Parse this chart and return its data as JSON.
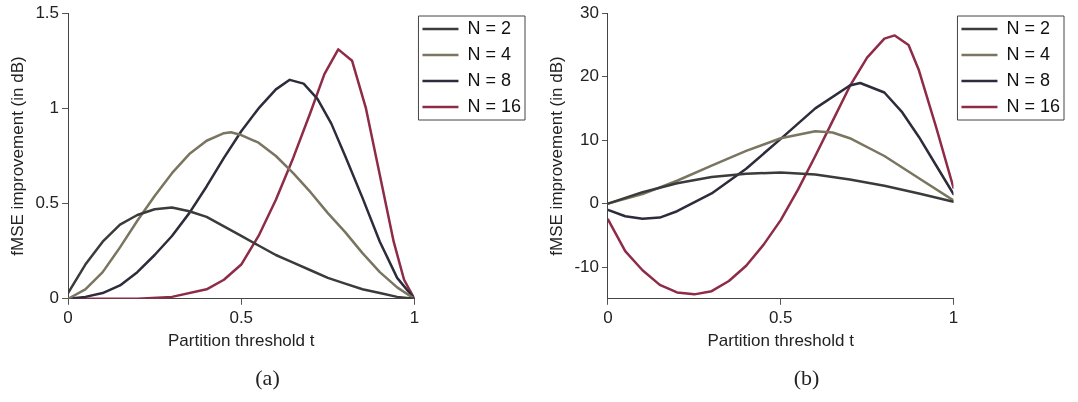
{
  "chart_data": [
    {
      "type": "line",
      "title": "(a)",
      "xlabel": "Partition threshold t",
      "ylabel": "fMSE improvement (in dB)",
      "xlim": [
        0,
        1
      ],
      "ylim": [
        0,
        1.5
      ],
      "xticks": [
        0,
        0.5,
        1
      ],
      "yticks": [
        0,
        0.5,
        1,
        1.5
      ],
      "grid": false,
      "legend": "top right",
      "marker": "none",
      "line_style": "solid",
      "series": [
        {
          "name": "N = 2",
          "color": "#3b3b3b",
          "x": [
            0,
            0.05,
            0.1,
            0.15,
            0.2,
            0.25,
            0.3,
            0.35,
            0.4,
            0.45,
            0.5,
            0.55,
            0.6,
            0.65,
            0.7,
            0.75,
            0.8,
            0.85,
            0.9,
            0.95,
            1
          ],
          "values": [
            0.03,
            0.18,
            0.3,
            0.39,
            0.44,
            0.47,
            0.48,
            0.46,
            0.43,
            0.38,
            0.33,
            0.28,
            0.23,
            0.19,
            0.15,
            0.11,
            0.08,
            0.05,
            0.03,
            0.01,
            0
          ]
        },
        {
          "name": "N = 4",
          "color": "#7a7560",
          "x": [
            0,
            0.05,
            0.1,
            0.15,
            0.2,
            0.25,
            0.3,
            0.35,
            0.4,
            0.45,
            0.47,
            0.5,
            0.55,
            0.6,
            0.65,
            0.7,
            0.75,
            0.8,
            0.85,
            0.9,
            0.95,
            1
          ],
          "values": [
            0,
            0.05,
            0.14,
            0.27,
            0.41,
            0.54,
            0.66,
            0.76,
            0.83,
            0.87,
            0.875,
            0.86,
            0.82,
            0.75,
            0.66,
            0.56,
            0.45,
            0.35,
            0.24,
            0.14,
            0.06,
            0
          ]
        },
        {
          "name": "N = 8",
          "color": "#2d2c3c",
          "x": [
            0,
            0.05,
            0.1,
            0.15,
            0.2,
            0.25,
            0.3,
            0.35,
            0.4,
            0.45,
            0.5,
            0.55,
            0.6,
            0.64,
            0.68,
            0.72,
            0.76,
            0.8,
            0.85,
            0.9,
            0.95,
            1
          ],
          "values": [
            0,
            0.01,
            0.03,
            0.07,
            0.14,
            0.23,
            0.33,
            0.45,
            0.59,
            0.74,
            0.88,
            1.0,
            1.1,
            1.15,
            1.13,
            1.05,
            0.92,
            0.75,
            0.53,
            0.3,
            0.11,
            0
          ]
        },
        {
          "name": "N = 16",
          "color": "#8e2c48",
          "x": [
            0,
            0.2,
            0.3,
            0.4,
            0.45,
            0.5,
            0.55,
            0.6,
            0.65,
            0.7,
            0.74,
            0.78,
            0.82,
            0.86,
            0.9,
            0.94,
            0.97,
            1
          ],
          "values": [
            0,
            0,
            0.01,
            0.05,
            0.1,
            0.18,
            0.33,
            0.52,
            0.74,
            0.98,
            1.18,
            1.31,
            1.25,
            1.0,
            0.65,
            0.3,
            0.1,
            0
          ]
        }
      ]
    },
    {
      "type": "line",
      "title": "(b)",
      "xlabel": "Partition threshold t",
      "ylabel": "fMSE improvement (in dB)",
      "xlim": [
        0,
        1
      ],
      "ylim": [
        -15,
        30
      ],
      "xticks": [
        0,
        0.5,
        1
      ],
      "yticks": [
        -10,
        0,
        10,
        20,
        30
      ],
      "grid": false,
      "legend": "top right",
      "marker": "none",
      "line_style": "solid",
      "series": [
        {
          "name": "N = 2",
          "color": "#3b3b3b",
          "x": [
            0,
            0.1,
            0.2,
            0.3,
            0.4,
            0.5,
            0.6,
            0.7,
            0.8,
            0.9,
            1
          ],
          "values": [
            0,
            1.8,
            3.2,
            4.2,
            4.7,
            4.9,
            4.6,
            3.8,
            2.8,
            1.6,
            0.3
          ]
        },
        {
          "name": "N = 4",
          "color": "#7a7560",
          "x": [
            0,
            0.1,
            0.2,
            0.3,
            0.4,
            0.5,
            0.6,
            0.65,
            0.7,
            0.8,
            0.9,
            1
          ],
          "values": [
            0,
            1.5,
            3.6,
            6.0,
            8.3,
            10.3,
            11.4,
            11.2,
            10.3,
            7.5,
            4.0,
            0.5
          ]
        },
        {
          "name": "N = 8",
          "color": "#2d2c3c",
          "x": [
            0,
            0.05,
            0.1,
            0.15,
            0.2,
            0.3,
            0.4,
            0.5,
            0.6,
            0.7,
            0.73,
            0.8,
            0.85,
            0.9,
            0.95,
            1
          ],
          "values": [
            -1,
            -2,
            -2.4,
            -2.2,
            -1.2,
            1.6,
            5.5,
            10.2,
            15,
            18.6,
            19,
            17.5,
            14.5,
            10.5,
            6,
            1.5
          ]
        },
        {
          "name": "N = 16",
          "color": "#8e2c48",
          "x": [
            0,
            0.05,
            0.1,
            0.15,
            0.2,
            0.25,
            0.3,
            0.35,
            0.4,
            0.45,
            0.5,
            0.55,
            0.6,
            0.65,
            0.7,
            0.75,
            0.8,
            0.83,
            0.87,
            0.9,
            0.95,
            1
          ],
          "values": [
            -2.5,
            -7.5,
            -10.5,
            -12.8,
            -14,
            -14.3,
            -13.8,
            -12.2,
            -9.8,
            -6.5,
            -2.6,
            2.2,
            7.5,
            13,
            18.5,
            23,
            26,
            26.5,
            25,
            21,
            12,
            2.5
          ]
        }
      ]
    }
  ]
}
